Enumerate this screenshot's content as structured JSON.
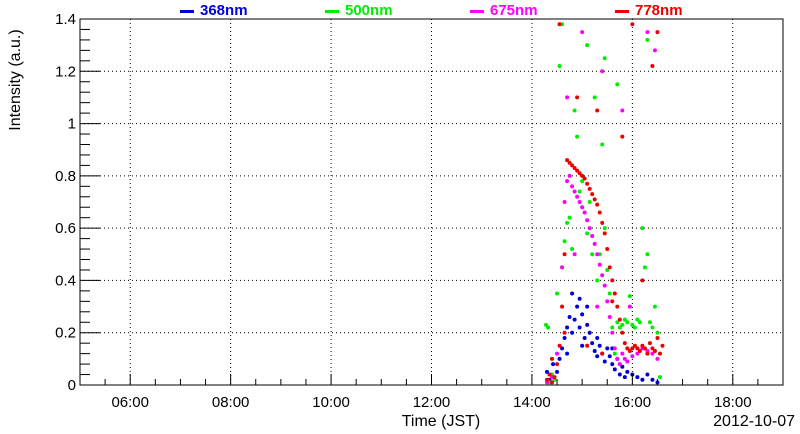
{
  "chart_data": {
    "type": "scatter",
    "xlabel": "Time (JST)",
    "ylabel": "Intensity (a.u.)",
    "date_label": "2012-10-07",
    "x_unit": "hours",
    "xlim": [
      5.0,
      19.0
    ],
    "ylim": [
      0,
      1.4
    ],
    "x_ticks": [
      6,
      8,
      10,
      12,
      14,
      16,
      18
    ],
    "x_tick_labels": [
      "06:00",
      "08:00",
      "10:00",
      "12:00",
      "14:00",
      "16:00",
      "18:00"
    ],
    "y_ticks": [
      0,
      0.2,
      0.4,
      0.6,
      0.8,
      1,
      1.2,
      1.4
    ],
    "y_tick_labels": [
      "0",
      "0.2",
      "0.4",
      "0.6",
      "0.8",
      "1",
      "1.2",
      "1.4"
    ],
    "grid": true,
    "legend_position": "top",
    "series": [
      {
        "name": "368nm",
        "color": "#0000dd",
        "points": [
          [
            14.3,
            0.05
          ],
          [
            14.35,
            0.02
          ],
          [
            14.42,
            0.08
          ],
          [
            14.5,
            0.05
          ],
          [
            14.55,
            0.1
          ],
          [
            14.6,
            0.14
          ],
          [
            14.65,
            0.18
          ],
          [
            14.7,
            0.22
          ],
          [
            14.75,
            0.26
          ],
          [
            14.8,
            0.2
          ],
          [
            14.85,
            0.25
          ],
          [
            14.9,
            0.3
          ],
          [
            14.95,
            0.22
          ],
          [
            15.0,
            0.27
          ],
          [
            15.05,
            0.18
          ],
          [
            15.1,
            0.23
          ],
          [
            15.15,
            0.2
          ],
          [
            15.2,
            0.16
          ],
          [
            15.25,
            0.13
          ],
          [
            15.3,
            0.11
          ],
          [
            15.35,
            0.15
          ],
          [
            15.4,
            0.12
          ],
          [
            15.45,
            0.09
          ],
          [
            15.5,
            0.14
          ],
          [
            15.55,
            0.11
          ],
          [
            15.6,
            0.08
          ],
          [
            15.65,
            0.06
          ],
          [
            15.7,
            0.1
          ],
          [
            15.75,
            0.04
          ],
          [
            15.8,
            0.07
          ],
          [
            15.85,
            0.03
          ],
          [
            15.9,
            0.05
          ],
          [
            16.0,
            0.04
          ],
          [
            16.1,
            0.03
          ],
          [
            16.2,
            0.02
          ],
          [
            16.3,
            0.04
          ],
          [
            16.4,
            0.02
          ],
          [
            16.5,
            0.01
          ],
          [
            14.8,
            0.35
          ],
          [
            14.95,
            0.33
          ],
          [
            15.1,
            0.3
          ],
          [
            14.7,
            0.12
          ],
          [
            15.0,
            0.15
          ],
          [
            15.3,
            0.18
          ],
          [
            15.6,
            0.14
          ]
        ]
      },
      {
        "name": "500nm",
        "color": "#00ee00",
        "points": [
          [
            14.28,
            0.23
          ],
          [
            14.32,
            0.22
          ],
          [
            14.4,
            0.04
          ],
          [
            14.5,
            0.35
          ],
          [
            14.6,
            0.45
          ],
          [
            14.65,
            0.55
          ],
          [
            14.7,
            0.62
          ],
          [
            14.75,
            0.64
          ],
          [
            14.8,
            0.52
          ],
          [
            14.85,
            1.05
          ],
          [
            14.9,
            0.95
          ],
          [
            14.95,
            0.74
          ],
          [
            15.0,
            0.78
          ],
          [
            15.05,
            0.66
          ],
          [
            15.1,
            0.58
          ],
          [
            15.15,
            0.7
          ],
          [
            15.2,
            0.5
          ],
          [
            15.25,
            1.1
          ],
          [
            15.3,
            0.4
          ],
          [
            15.35,
            0.5
          ],
          [
            15.4,
            0.92
          ],
          [
            15.45,
            0.6
          ],
          [
            15.5,
            0.44
          ],
          [
            15.55,
            0.35
          ],
          [
            15.6,
            0.22
          ],
          [
            15.65,
            0.12
          ],
          [
            15.7,
            0.24
          ],
          [
            15.75,
            0.22
          ],
          [
            15.8,
            0.23
          ],
          [
            15.85,
            0.25
          ],
          [
            15.9,
            0.24
          ],
          [
            15.95,
            0.34
          ],
          [
            16.0,
            0.23
          ],
          [
            16.05,
            0.22
          ],
          [
            16.1,
            0.25
          ],
          [
            16.15,
            0.24
          ],
          [
            16.2,
            0.6
          ],
          [
            16.25,
            0.45
          ],
          [
            16.3,
            0.5
          ],
          [
            16.35,
            0.24
          ],
          [
            16.4,
            0.22
          ],
          [
            16.45,
            0.3
          ],
          [
            16.5,
            0.2
          ],
          [
            14.55,
            1.22
          ],
          [
            14.6,
            1.38
          ],
          [
            15.1,
            1.3
          ],
          [
            15.45,
            1.25
          ],
          [
            15.7,
            1.15
          ],
          [
            16.3,
            1.32
          ],
          [
            14.35,
            0.01
          ],
          [
            14.45,
            0.02
          ],
          [
            16.55,
            0.03
          ]
        ]
      },
      {
        "name": "675nm",
        "color": "#ff00ff",
        "points": [
          [
            14.3,
            0.01
          ],
          [
            14.4,
            0.03
          ],
          [
            14.5,
            0.12
          ],
          [
            14.6,
            0.45
          ],
          [
            14.65,
            0.7
          ],
          [
            14.7,
            0.78
          ],
          [
            14.75,
            0.8
          ],
          [
            14.8,
            0.76
          ],
          [
            14.85,
            0.74
          ],
          [
            14.9,
            0.72
          ],
          [
            14.95,
            0.7
          ],
          [
            15.0,
            0.68
          ],
          [
            15.05,
            0.66
          ],
          [
            15.1,
            0.63
          ],
          [
            15.15,
            0.6
          ],
          [
            15.2,
            0.57
          ],
          [
            15.25,
            0.54
          ],
          [
            15.3,
            0.5
          ],
          [
            15.35,
            0.46
          ],
          [
            15.4,
            0.42
          ],
          [
            15.45,
            0.38
          ],
          [
            15.5,
            0.32
          ],
          [
            15.55,
            0.26
          ],
          [
            15.6,
            0.2
          ],
          [
            15.65,
            0.14
          ],
          [
            15.7,
            0.1
          ],
          [
            15.75,
            0.08
          ],
          [
            15.8,
            0.12
          ],
          [
            15.85,
            0.1
          ],
          [
            15.9,
            0.09
          ],
          [
            16.0,
            0.11
          ],
          [
            16.1,
            0.12
          ],
          [
            16.2,
            0.14
          ],
          [
            16.3,
            0.13
          ],
          [
            16.4,
            0.12
          ],
          [
            16.5,
            0.1
          ],
          [
            14.7,
            1.1
          ],
          [
            15.0,
            1.35
          ],
          [
            15.4,
            1.2
          ],
          [
            15.8,
            1.05
          ],
          [
            16.3,
            1.35
          ],
          [
            16.45,
            1.28
          ],
          [
            14.85,
            0.5
          ],
          [
            15.3,
            0.3
          ],
          [
            15.95,
            0.3
          ]
        ]
      },
      {
        "name": "778nm",
        "color": "#ee0000",
        "points": [
          [
            14.3,
            0.02
          ],
          [
            14.35,
            0.04
          ],
          [
            14.4,
            0.01
          ],
          [
            14.45,
            0.03
          ],
          [
            14.5,
            0.08
          ],
          [
            14.55,
            0.15
          ],
          [
            14.6,
            0.3
          ],
          [
            14.65,
            0.5
          ],
          [
            14.7,
            0.86
          ],
          [
            14.75,
            0.85
          ],
          [
            14.8,
            0.84
          ],
          [
            14.85,
            0.83
          ],
          [
            14.9,
            0.82
          ],
          [
            14.95,
            0.81
          ],
          [
            15.0,
            0.8
          ],
          [
            15.05,
            0.79
          ],
          [
            15.1,
            0.77
          ],
          [
            15.15,
            0.75
          ],
          [
            15.2,
            0.73
          ],
          [
            15.25,
            0.71
          ],
          [
            15.3,
            0.69
          ],
          [
            15.35,
            0.66
          ],
          [
            15.4,
            0.62
          ],
          [
            15.45,
            0.58
          ],
          [
            15.5,
            0.52
          ],
          [
            15.55,
            0.45
          ],
          [
            15.6,
            0.4
          ],
          [
            15.65,
            0.35
          ],
          [
            15.7,
            0.3
          ],
          [
            15.75,
            0.25
          ],
          [
            15.8,
            0.2
          ],
          [
            15.85,
            0.16
          ],
          [
            15.9,
            0.14
          ],
          [
            15.95,
            0.13
          ],
          [
            16.0,
            0.14
          ],
          [
            16.05,
            0.15
          ],
          [
            16.1,
            0.14
          ],
          [
            16.15,
            0.13
          ],
          [
            16.2,
            0.15
          ],
          [
            16.25,
            0.14
          ],
          [
            16.3,
            0.12
          ],
          [
            16.35,
            0.16
          ],
          [
            16.4,
            0.14
          ],
          [
            16.45,
            0.13
          ],
          [
            16.5,
            0.18
          ],
          [
            16.55,
            0.12
          ],
          [
            16.6,
            0.15
          ],
          [
            14.55,
            1.38
          ],
          [
            14.9,
            1.1
          ],
          [
            15.3,
            1.05
          ],
          [
            15.8,
            0.95
          ],
          [
            16.0,
            1.38
          ],
          [
            16.4,
            1.22
          ],
          [
            16.5,
            1.35
          ],
          [
            14.4,
            0.1
          ],
          [
            14.65,
            0.2
          ],
          [
            15.1,
            0.15
          ],
          [
            15.4,
            0.12
          ],
          [
            15.6,
            0.32
          ],
          [
            16.2,
            0.4
          ]
        ]
      }
    ]
  }
}
